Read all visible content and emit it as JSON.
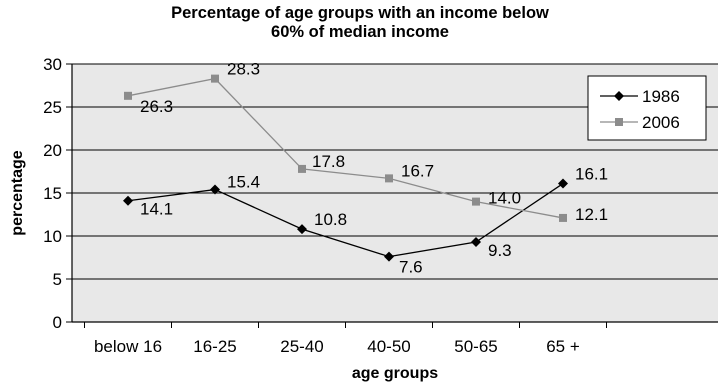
{
  "chart_data": {
    "type": "line",
    "title_line1": "Percentage of age groups with an income below",
    "title_line2": "60% of median income",
    "xlabel": "age groups",
    "ylabel": "percentage",
    "categories": [
      "below 16",
      "16-25",
      "25-40",
      "40-50",
      "50-65",
      "65 +"
    ],
    "ylim": [
      0,
      30
    ],
    "yticks": [
      0,
      5,
      10,
      15,
      20,
      25,
      30
    ],
    "grid": true,
    "legend_position": "top-right",
    "series": [
      {
        "name": "1986",
        "values": [
          14.1,
          15.4,
          10.8,
          7.6,
          9.3,
          16.1
        ],
        "color": "#000000",
        "marker": "diamond"
      },
      {
        "name": "2006",
        "values": [
          26.3,
          28.3,
          17.8,
          16.7,
          14.0,
          12.1
        ],
        "color": "#8c8c8c",
        "marker": "square"
      }
    ],
    "plot_background": "#e8e8e8"
  }
}
